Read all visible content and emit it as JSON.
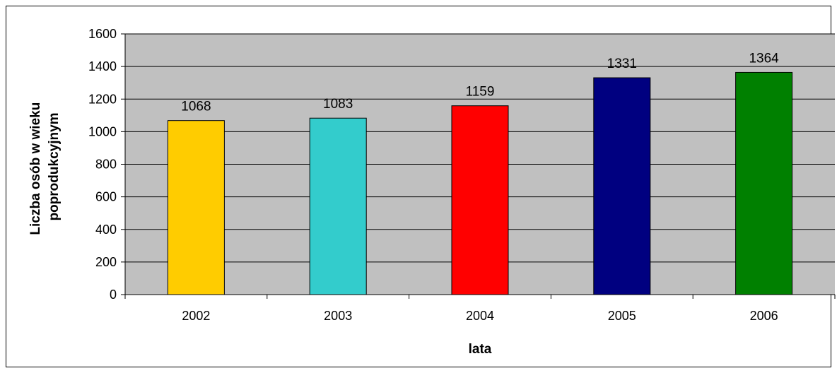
{
  "chart_data": {
    "type": "bar",
    "categories": [
      "2002",
      "2003",
      "2004",
      "2005",
      "2006"
    ],
    "values": [
      1068,
      1083,
      1159,
      1331,
      1364
    ],
    "data_labels": [
      "1068",
      "1083",
      "1159",
      "1331",
      "1364"
    ],
    "colors": [
      "#FFCC00",
      "#33CCCC",
      "#FF0000",
      "#000080",
      "#008000"
    ],
    "title": "",
    "xlabel": "lata",
    "ylabel_lines": [
      "Liczba osób w wieku",
      "poprodukcyjnym"
    ],
    "ylim": [
      0,
      1600
    ],
    "yticks": [
      0,
      200,
      400,
      600,
      800,
      1000,
      1200,
      1400,
      1600
    ],
    "plot_background": "#C0C0C0",
    "grid": true,
    "legend": "none"
  }
}
